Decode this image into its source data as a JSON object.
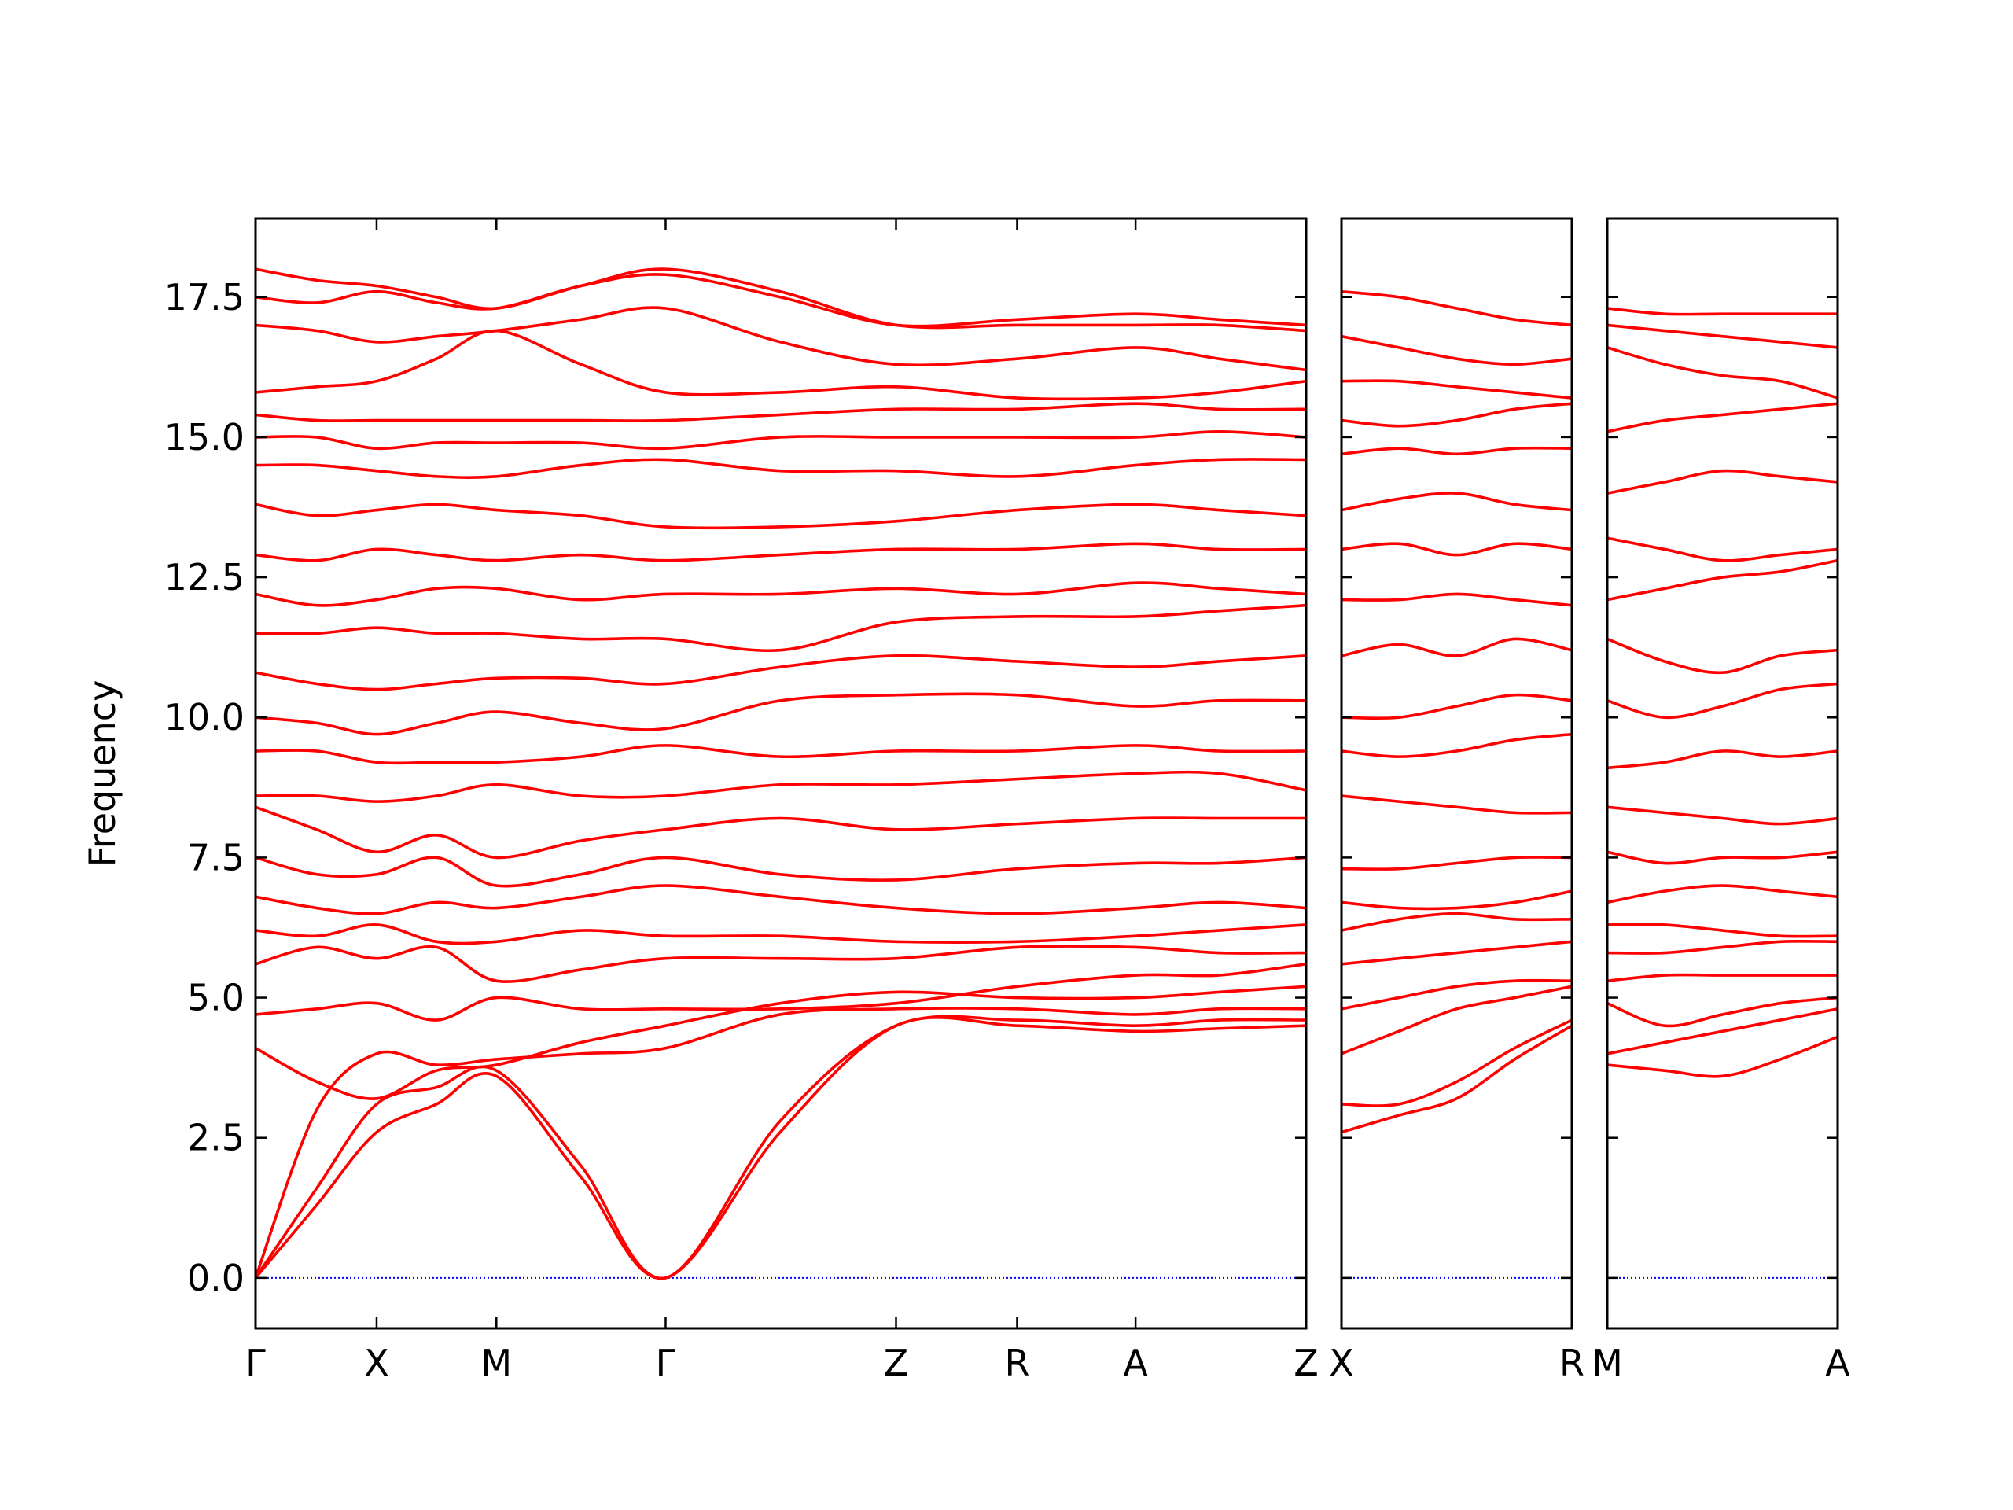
{
  "chart_data": [
    {
      "type": "line",
      "ylabel": "Frequency",
      "color": "#ff0000",
      "ylim": [
        -0.9,
        18.9
      ],
      "yticks": [
        {
          "value": 0,
          "label": "0.0"
        },
        2.5,
        {
          "value": 5,
          "label": "5.0"
        },
        7.5,
        {
          "value": 10,
          "label": "10.0"
        },
        12.5,
        {
          "value": 15,
          "label": "15.0"
        },
        17.5
      ],
      "hline": {
        "y": 0,
        "color": "#0000ff"
      },
      "xlim": [
        0,
        8.07
      ],
      "xticks": [
        {
          "value": 0,
          "label": "Γ"
        },
        {
          "value": 0.93,
          "label": "X"
        },
        {
          "value": 1.85,
          "label": "M"
        },
        {
          "value": 3.15,
          "label": "Γ"
        },
        {
          "value": 4.92,
          "label": "Z"
        },
        {
          "value": 5.85,
          "label": "R"
        },
        {
          "value": 6.76,
          "label": "A"
        },
        {
          "value": 8.07,
          "label": "Z"
        }
      ],
      "x": [
        0,
        0.47,
        0.93,
        1.39,
        1.85,
        2.5,
        3.15,
        4.03,
        4.92,
        5.85,
        6.76,
        7.4,
        8.07
      ],
      "series": [
        {
          "values": [
            0,
            1.3,
            2.6,
            3.1,
            3.6,
            1.8,
            0,
            2.6,
            4.5,
            4.5,
            4.4,
            4.45,
            4.5
          ]
        },
        {
          "values": [
            0,
            1.6,
            3.1,
            3.4,
            3.7,
            2.0,
            0,
            2.8,
            4.5,
            4.6,
            4.5,
            4.6,
            4.6
          ]
        },
        {
          "values": [
            0,
            3.0,
            4.0,
            3.8,
            3.9,
            4.0,
            4.1,
            4.7,
            4.8,
            4.8,
            4.7,
            4.8,
            4.8
          ]
        },
        {
          "values": [
            4.1,
            3.5,
            3.2,
            3.7,
            3.8,
            4.2,
            4.5,
            4.9,
            5.1,
            5.0,
            5.0,
            5.1,
            5.2
          ]
        },
        {
          "values": [
            4.7,
            4.8,
            4.9,
            4.6,
            5.0,
            4.8,
            4.8,
            4.8,
            4.9,
            5.2,
            5.4,
            5.4,
            5.6
          ]
        },
        {
          "values": [
            5.6,
            5.9,
            5.7,
            5.9,
            5.3,
            5.5,
            5.7,
            5.7,
            5.7,
            5.9,
            5.9,
            5.8,
            5.8
          ]
        },
        {
          "values": [
            6.2,
            6.1,
            6.3,
            6.0,
            6.0,
            6.2,
            6.1,
            6.1,
            6.0,
            6.0,
            6.1,
            6.2,
            6.3
          ]
        },
        {
          "values": [
            6.8,
            6.6,
            6.5,
            6.7,
            6.6,
            6.8,
            7.0,
            6.8,
            6.6,
            6.5,
            6.6,
            6.7,
            6.6
          ]
        },
        {
          "values": [
            7.5,
            7.2,
            7.2,
            7.5,
            7.0,
            7.2,
            7.5,
            7.2,
            7.1,
            7.3,
            7.4,
            7.4,
            7.5
          ]
        },
        {
          "values": [
            8.4,
            8.0,
            7.6,
            7.9,
            7.5,
            7.8,
            8.0,
            8.2,
            8.0,
            8.1,
            8.2,
            8.2,
            8.2
          ]
        },
        {
          "values": [
            8.6,
            8.6,
            8.5,
            8.6,
            8.8,
            8.6,
            8.6,
            8.8,
            8.8,
            8.9,
            9.0,
            9.0,
            8.7
          ]
        },
        {
          "values": [
            9.4,
            9.4,
            9.2,
            9.2,
            9.2,
            9.3,
            9.5,
            9.3,
            9.4,
            9.4,
            9.5,
            9.4,
            9.4
          ]
        },
        {
          "values": [
            10.0,
            9.9,
            9.7,
            9.9,
            10.1,
            9.9,
            9.8,
            10.3,
            10.4,
            10.4,
            10.2,
            10.3,
            10.3
          ]
        },
        {
          "values": [
            10.8,
            10.6,
            10.5,
            10.6,
            10.7,
            10.7,
            10.6,
            10.9,
            11.1,
            11.0,
            10.9,
            11.0,
            11.1
          ]
        },
        {
          "values": [
            11.5,
            11.5,
            11.6,
            11.5,
            11.5,
            11.4,
            11.4,
            11.2,
            11.7,
            11.8,
            11.8,
            11.9,
            12.0
          ]
        },
        {
          "values": [
            12.2,
            12.0,
            12.1,
            12.3,
            12.3,
            12.1,
            12.2,
            12.2,
            12.3,
            12.2,
            12.4,
            12.3,
            12.2
          ]
        },
        {
          "values": [
            12.9,
            12.8,
            13.0,
            12.9,
            12.8,
            12.9,
            12.8,
            12.9,
            13.0,
            13.0,
            13.1,
            13.0,
            13.0
          ]
        },
        {
          "values": [
            13.8,
            13.6,
            13.7,
            13.8,
            13.7,
            13.6,
            13.4,
            13.4,
            13.5,
            13.7,
            13.8,
            13.7,
            13.6
          ]
        },
        {
          "values": [
            14.5,
            14.5,
            14.4,
            14.3,
            14.3,
            14.5,
            14.6,
            14.4,
            14.4,
            14.3,
            14.5,
            14.6,
            14.6
          ]
        },
        {
          "values": [
            15.0,
            15.0,
            14.8,
            14.9,
            14.9,
            14.9,
            14.8,
            15.0,
            15.0,
            15.0,
            15.0,
            15.1,
            15.0
          ]
        },
        {
          "values": [
            15.4,
            15.3,
            15.3,
            15.3,
            15.3,
            15.3,
            15.3,
            15.4,
            15.5,
            15.5,
            15.6,
            15.5,
            15.5
          ]
        },
        {
          "values": [
            15.8,
            15.9,
            16.0,
            16.4,
            16.9,
            16.3,
            15.8,
            15.8,
            15.9,
            15.7,
            15.7,
            15.8,
            16.0
          ]
        },
        {
          "values": [
            17.0,
            16.9,
            16.7,
            16.8,
            16.9,
            17.1,
            17.3,
            16.7,
            16.3,
            16.4,
            16.6,
            16.4,
            16.2
          ]
        },
        {
          "values": [
            17.5,
            17.4,
            17.6,
            17.4,
            17.3,
            17.7,
            17.9,
            17.5,
            17.0,
            17.1,
            17.2,
            17.1,
            17.0
          ]
        },
        {
          "values": [
            18.0,
            17.8,
            17.7,
            17.5,
            17.3,
            17.7,
            18.0,
            17.6,
            17.0,
            17.0,
            17.0,
            17.0,
            16.9
          ]
        }
      ]
    },
    {
      "type": "line",
      "sharey": true,
      "color": "#ff0000",
      "hline": {
        "y": 0,
        "color": "#0000ff"
      },
      "xlim": [
        0,
        1.77
      ],
      "xticks": [
        {
          "value": 0,
          "label": "X"
        },
        {
          "value": 1.77,
          "label": "R"
        }
      ],
      "x": [
        0,
        0.44,
        0.885,
        1.33,
        1.77
      ],
      "series": [
        {
          "values": [
            2.6,
            2.9,
            3.2,
            3.9,
            4.5
          ]
        },
        {
          "values": [
            3.1,
            3.1,
            3.5,
            4.1,
            4.6
          ]
        },
        {
          "values": [
            4.0,
            4.4,
            4.8,
            5.0,
            5.2
          ]
        },
        {
          "values": [
            4.8,
            5.0,
            5.2,
            5.3,
            5.3
          ]
        },
        {
          "values": [
            5.6,
            5.7,
            5.8,
            5.9,
            6.0
          ]
        },
        {
          "values": [
            6.2,
            6.4,
            6.5,
            6.4,
            6.4
          ]
        },
        {
          "values": [
            6.7,
            6.6,
            6.6,
            6.7,
            6.9
          ]
        },
        {
          "values": [
            7.3,
            7.3,
            7.4,
            7.5,
            7.5
          ]
        },
        {
          "values": [
            8.6,
            8.5,
            8.4,
            8.3,
            8.3
          ]
        },
        {
          "values": [
            9.4,
            9.3,
            9.4,
            9.6,
            9.7
          ]
        },
        {
          "values": [
            10.0,
            10.0,
            10.2,
            10.4,
            10.3
          ]
        },
        {
          "values": [
            11.1,
            11.3,
            11.1,
            11.4,
            11.2
          ]
        },
        {
          "values": [
            12.1,
            12.1,
            12.2,
            12.1,
            12.0
          ]
        },
        {
          "values": [
            13.0,
            13.1,
            12.9,
            13.1,
            13.0
          ]
        },
        {
          "values": [
            13.7,
            13.9,
            14.0,
            13.8,
            13.7
          ]
        },
        {
          "values": [
            14.7,
            14.8,
            14.7,
            14.8,
            14.8
          ]
        },
        {
          "values": [
            15.3,
            15.2,
            15.3,
            15.5,
            15.6
          ]
        },
        {
          "values": [
            16.0,
            16.0,
            15.9,
            15.8,
            15.7
          ]
        },
        {
          "values": [
            16.8,
            16.6,
            16.4,
            16.3,
            16.4
          ]
        },
        {
          "values": [
            17.6,
            17.5,
            17.3,
            17.1,
            17.0
          ]
        }
      ]
    },
    {
      "type": "line",
      "sharey": true,
      "color": "#ff0000",
      "hline": {
        "y": 0,
        "color": "#0000ff"
      },
      "xlim": [
        0,
        1.77
      ],
      "xticks": [
        {
          "value": 0,
          "label": "M"
        },
        {
          "value": 1.77,
          "label": "A"
        }
      ],
      "x": [
        0,
        0.44,
        0.885,
        1.33,
        1.77
      ],
      "series": [
        {
          "values": [
            3.8,
            3.7,
            3.6,
            3.9,
            4.3
          ]
        },
        {
          "values": [
            4.0,
            4.2,
            4.4,
            4.6,
            4.8
          ]
        },
        {
          "values": [
            4.9,
            4.5,
            4.7,
            4.9,
            5.0
          ]
        },
        {
          "values": [
            5.3,
            5.4,
            5.4,
            5.4,
            5.4
          ]
        },
        {
          "values": [
            5.8,
            5.8,
            5.9,
            6.0,
            6.0
          ]
        },
        {
          "values": [
            6.3,
            6.3,
            6.2,
            6.1,
            6.1
          ]
        },
        {
          "values": [
            6.7,
            6.9,
            7.0,
            6.9,
            6.8
          ]
        },
        {
          "values": [
            7.6,
            7.4,
            7.5,
            7.5,
            7.6
          ]
        },
        {
          "values": [
            8.4,
            8.3,
            8.2,
            8.1,
            8.2
          ]
        },
        {
          "values": [
            9.1,
            9.2,
            9.4,
            9.3,
            9.4
          ]
        },
        {
          "values": [
            10.3,
            10.0,
            10.2,
            10.5,
            10.6
          ]
        },
        {
          "values": [
            11.4,
            11.0,
            10.8,
            11.1,
            11.2
          ]
        },
        {
          "values": [
            12.1,
            12.3,
            12.5,
            12.6,
            12.8
          ]
        },
        {
          "values": [
            13.2,
            13.0,
            12.8,
            12.9,
            13.0
          ]
        },
        {
          "values": [
            14.0,
            14.2,
            14.4,
            14.3,
            14.2
          ]
        },
        {
          "values": [
            15.1,
            15.3,
            15.4,
            15.5,
            15.6
          ]
        },
        {
          "values": [
            16.6,
            16.3,
            16.1,
            16.0,
            15.7
          ]
        },
        {
          "values": [
            17.0,
            16.9,
            16.8,
            16.7,
            16.6
          ]
        },
        {
          "values": [
            17.3,
            17.2,
            17.2,
            17.2,
            17.2
          ]
        }
      ]
    }
  ]
}
